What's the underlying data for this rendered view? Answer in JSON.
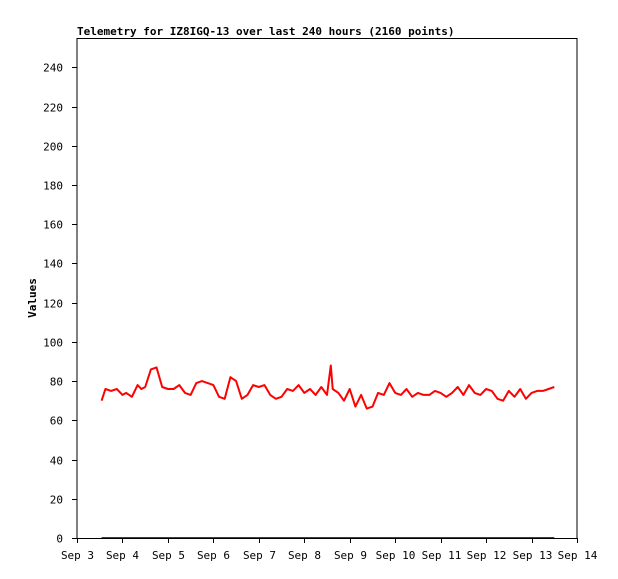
{
  "chart_data": {
    "type": "line",
    "title": "Telemetry for IZ8IGQ-13 over last 240 hours (2160 points)",
    "ylabel": "Values",
    "xlabel": "",
    "ylim": [
      0,
      255
    ],
    "yticks": [
      0,
      20,
      40,
      60,
      80,
      100,
      120,
      140,
      160,
      180,
      200,
      220,
      240
    ],
    "xlim": [
      "2023-09-03",
      "2023-09-14"
    ],
    "xticks": [
      "Sep 3",
      "Sep 4",
      "Sep 5",
      "Sep 6",
      "Sep 7",
      "Sep 8",
      "Sep 9",
      "Sep 10",
      "Sep 11",
      "Sep 12",
      "Sep 13",
      "Sep 14"
    ],
    "grid": false,
    "colors": {
      "main": "#ff0000",
      "flat": "#000000"
    },
    "series": [
      {
        "color": "#ff0000",
        "x": [
          "2023-09-03T13:00",
          "2023-09-03T15:00",
          "2023-09-03T18:00",
          "2023-09-03T21:00",
          "2023-09-04T00:00",
          "2023-09-04T02:00",
          "2023-09-04T05:00",
          "2023-09-04T08:00",
          "2023-09-04T10:00",
          "2023-09-04T12:00",
          "2023-09-04T15:00",
          "2023-09-04T18:00",
          "2023-09-04T21:00",
          "2023-09-05T00:00",
          "2023-09-05T03:00",
          "2023-09-05T06:00",
          "2023-09-05T09:00",
          "2023-09-05T12:00",
          "2023-09-05T15:00",
          "2023-09-05T18:00",
          "2023-09-05T21:00",
          "2023-09-06T00:00",
          "2023-09-06T03:00",
          "2023-09-06T06:00",
          "2023-09-06T09:00",
          "2023-09-06T12:00",
          "2023-09-06T15:00",
          "2023-09-06T18:00",
          "2023-09-06T21:00",
          "2023-09-07T00:00",
          "2023-09-07T03:00",
          "2023-09-07T06:00",
          "2023-09-07T09:00",
          "2023-09-07T12:00",
          "2023-09-07T15:00",
          "2023-09-07T18:00",
          "2023-09-07T21:00",
          "2023-09-08T00:00",
          "2023-09-08T03:00",
          "2023-09-08T06:00",
          "2023-09-08T09:00",
          "2023-09-08T12:00",
          "2023-09-08T14:00",
          "2023-09-08T15:00",
          "2023-09-08T18:00",
          "2023-09-08T21:00",
          "2023-09-09T00:00",
          "2023-09-09T03:00",
          "2023-09-09T06:00",
          "2023-09-09T09:00",
          "2023-09-09T12:00",
          "2023-09-09T15:00",
          "2023-09-09T18:00",
          "2023-09-09T21:00",
          "2023-09-10T00:00",
          "2023-09-10T03:00",
          "2023-09-10T06:00",
          "2023-09-10T09:00",
          "2023-09-10T12:00",
          "2023-09-10T15:00",
          "2023-09-10T18:00",
          "2023-09-10T21:00",
          "2023-09-11T00:00",
          "2023-09-11T03:00",
          "2023-09-11T06:00",
          "2023-09-11T09:00",
          "2023-09-11T12:00",
          "2023-09-11T15:00",
          "2023-09-11T18:00",
          "2023-09-11T21:00",
          "2023-09-12T00:00",
          "2023-09-12T03:00",
          "2023-09-12T06:00",
          "2023-09-12T09:00",
          "2023-09-12T12:00",
          "2023-09-12T15:00",
          "2023-09-12T18:00",
          "2023-09-12T21:00",
          "2023-09-13T00:00",
          "2023-09-13T03:00",
          "2023-09-13T06:00",
          "2023-09-13T09:00",
          "2023-09-13T12:00"
        ],
        "y": [
          70,
          76,
          75,
          76,
          73,
          74,
          72,
          78,
          76,
          77,
          86,
          87,
          77,
          76,
          76,
          78,
          74,
          73,
          79,
          80,
          79,
          78,
          72,
          71,
          82,
          80,
          71,
          73,
          78,
          77,
          78,
          73,
          71,
          72,
          76,
          75,
          78,
          74,
          76,
          73,
          77,
          73,
          88,
          76,
          74,
          70,
          76,
          67,
          73,
          66,
          67,
          74,
          73,
          79,
          74,
          73,
          76,
          72,
          74,
          73,
          73,
          75,
          74,
          72,
          74,
          77,
          73,
          78,
          74,
          73,
          76,
          75,
          71,
          70,
          75,
          72,
          76,
          71,
          74,
          75,
          75,
          76,
          77
        ]
      },
      {
        "color": "#000000",
        "x": [
          "2023-09-03T13:00",
          "2023-09-13T12:00"
        ],
        "y": [
          0,
          0
        ]
      }
    ]
  }
}
